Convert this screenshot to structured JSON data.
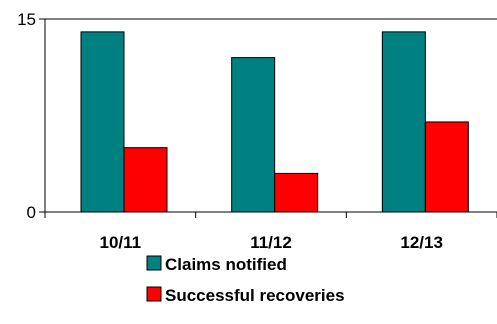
{
  "chart_data": {
    "type": "bar",
    "categories": [
      "10/11",
      "11/12",
      "12/13"
    ],
    "series": [
      {
        "name": "Claims notified",
        "values": [
          14,
          12,
          14
        ],
        "color": "#008080"
      },
      {
        "name": "Successful recoveries",
        "values": [
          5,
          3,
          7
        ],
        "color": "#ff0000"
      }
    ],
    "ylim": [
      0,
      15
    ],
    "yticks": [
      "0",
      "15"
    ],
    "grid": true,
    "legend_position": "bottom"
  }
}
